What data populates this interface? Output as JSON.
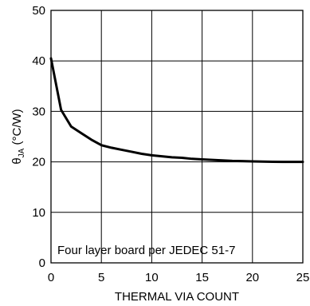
{
  "chart_data": {
    "type": "line",
    "x_ticks": [
      0,
      5,
      10,
      15,
      20,
      25
    ],
    "y_ticks": [
      0,
      10,
      20,
      30,
      40,
      50
    ],
    "xlim": [
      0,
      25
    ],
    "ylim": [
      0,
      50
    ],
    "grid": true,
    "xlabel": "THERMAL VIA COUNT",
    "ylabel": {
      "symbol": "θ",
      "subscript": "JA",
      "unit": " (°C/W)"
    },
    "annotation": "Four layer board per JEDEC 51-7",
    "series": [
      {
        "x": [
          0,
          1,
          2,
          3,
          4,
          5,
          6,
          7,
          8,
          9,
          10,
          11,
          12,
          13,
          14,
          15,
          16,
          17,
          18,
          19,
          20,
          21,
          22,
          23,
          24,
          25
        ],
        "y": [
          40.5,
          30.3,
          27.0,
          25.7,
          24.4,
          23.3,
          22.8,
          22.4,
          22.0,
          21.6,
          21.3,
          21.1,
          20.9,
          20.8,
          20.6,
          20.5,
          20.4,
          20.3,
          20.2,
          20.15,
          20.1,
          20.05,
          20.02,
          20.0,
          20.0,
          20.0
        ]
      }
    ]
  }
}
